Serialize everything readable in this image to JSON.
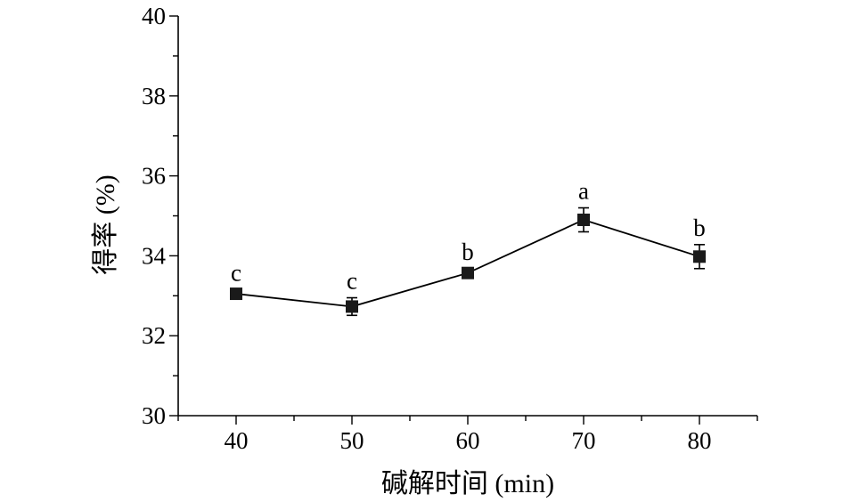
{
  "chart_data": {
    "type": "line",
    "x": [
      40,
      50,
      60,
      70,
      80
    ],
    "series": [
      {
        "values": [
          33.05,
          32.73,
          33.57,
          34.9,
          33.98
        ],
        "error": [
          0.1,
          0.22,
          0.1,
          0.3,
          0.3
        ],
        "significance": [
          "c",
          "c",
          "b",
          "a",
          "b"
        ]
      }
    ],
    "xlabel": "碱解时间 (min)",
    "ylabel": "得率 (%)",
    "xticks": [
      "40",
      "50",
      "60",
      "70",
      "80"
    ],
    "yticks": [
      "30",
      "32",
      "34",
      "36",
      "38",
      "40"
    ],
    "xlim": [
      35,
      85
    ],
    "ylim": [
      30,
      40
    ],
    "marker": "square",
    "grid": false,
    "colors": {
      "line": "#000000",
      "marker": "#1a1a1a"
    }
  }
}
